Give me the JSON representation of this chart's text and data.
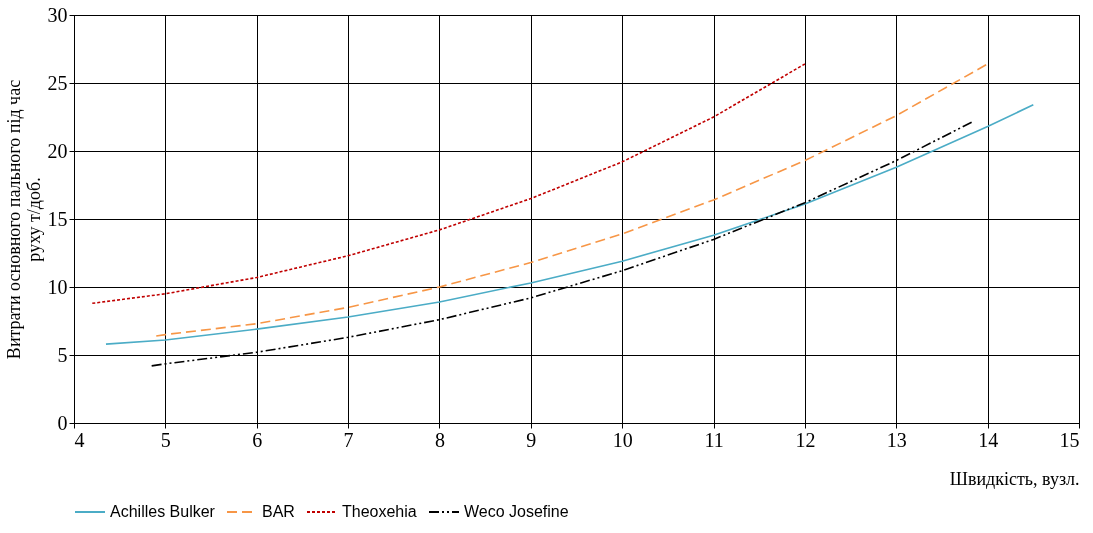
{
  "chart_data": {
    "type": "line",
    "xlabel": "Швидкість, вузл.",
    "ylabel": "Витрати основного пального під час\nруху т/доб.",
    "xlim": [
      4,
      15
    ],
    "xticks": [
      4,
      5,
      6,
      7,
      8,
      9,
      10,
      11,
      12,
      13,
      14,
      15
    ],
    "ylim": [
      0,
      30
    ],
    "yticks": [
      0,
      5,
      10,
      15,
      20,
      25,
      30
    ],
    "grid": true,
    "legend": "bottom",
    "marker": "none",
    "series": [
      {
        "name": "Achilles Bulker",
        "color": "#4bacc6",
        "line_style": "solid",
        "x": [
          4.35,
          5,
          6,
          7,
          8,
          9,
          10,
          11,
          12,
          13,
          14,
          14.5
        ],
        "values": [
          5.8,
          6.1,
          6.9,
          7.8,
          8.9,
          10.3,
          11.9,
          13.8,
          16.1,
          18.8,
          21.8,
          23.4
        ]
      },
      {
        "name": "BAR",
        "color": "#f79646",
        "line_style": "dashed",
        "x": [
          4.9,
          5,
          6,
          7,
          8,
          9,
          10,
          11,
          12,
          13,
          14
        ],
        "values": [
          6.4,
          6.5,
          7.3,
          8.5,
          10.0,
          11.8,
          13.9,
          16.4,
          19.3,
          22.6,
          26.4
        ]
      },
      {
        "name": "Theoxehia",
        "color": "#c00000",
        "line_style": "dotted",
        "x": [
          4.2,
          5,
          6,
          7,
          8,
          9,
          10,
          11,
          12
        ],
        "values": [
          8.8,
          9.5,
          10.7,
          12.3,
          14.2,
          16.5,
          19.2,
          22.5,
          26.4
        ]
      },
      {
        "name": "Weco Josefine",
        "color": "#000000",
        "line_style": "dashdot",
        "x": [
          4.85,
          5,
          6,
          7,
          8,
          9,
          10,
          11,
          12,
          13,
          13.85
        ],
        "values": [
          4.2,
          4.35,
          5.2,
          6.3,
          7.6,
          9.2,
          11.2,
          13.5,
          16.2,
          19.3,
          22.2
        ]
      }
    ]
  }
}
